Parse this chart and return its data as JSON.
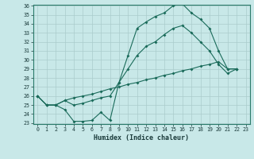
{
  "xlabel": "Humidex (Indice chaleur)",
  "bg_color": "#c8e8e8",
  "line_color": "#1a6b5a",
  "grid_color": "#aacccc",
  "x": [
    0,
    1,
    2,
    3,
    4,
    5,
    6,
    7,
    8,
    9,
    10,
    11,
    12,
    13,
    14,
    15,
    16,
    17,
    18,
    19,
    20,
    21,
    22,
    23
  ],
  "line_max": [
    26.0,
    25.0,
    25.0,
    24.5,
    23.2,
    23.2,
    23.3,
    24.2,
    23.3,
    27.5,
    30.5,
    33.5,
    34.2,
    34.8,
    35.2,
    36.0,
    36.2,
    35.2,
    34.5,
    33.5,
    31.0,
    29.0,
    29.0,
    null
  ],
  "line_mean": [
    26.0,
    25.0,
    25.0,
    25.5,
    25.0,
    25.2,
    25.5,
    25.8,
    26.0,
    27.5,
    29.0,
    30.5,
    31.5,
    32.0,
    32.8,
    33.5,
    33.8,
    33.0,
    32.0,
    31.0,
    29.5,
    28.5,
    29.0,
    null
  ],
  "line_min": [
    26.0,
    25.0,
    25.0,
    25.5,
    25.8,
    26.0,
    26.2,
    26.5,
    26.8,
    27.0,
    27.3,
    27.5,
    27.8,
    28.0,
    28.3,
    28.5,
    28.8,
    29.0,
    29.3,
    29.5,
    29.8,
    29.0,
    29.0,
    null
  ],
  "ylim": [
    23,
    36
  ],
  "xlim": [
    -0.5,
    23.5
  ],
  "yticks": [
    23,
    24,
    25,
    26,
    27,
    28,
    29,
    30,
    31,
    32,
    33,
    34,
    35,
    36
  ],
  "xticks": [
    0,
    1,
    2,
    3,
    4,
    5,
    6,
    7,
    8,
    9,
    10,
    11,
    12,
    13,
    14,
    15,
    16,
    17,
    18,
    19,
    20,
    21,
    22,
    23
  ]
}
